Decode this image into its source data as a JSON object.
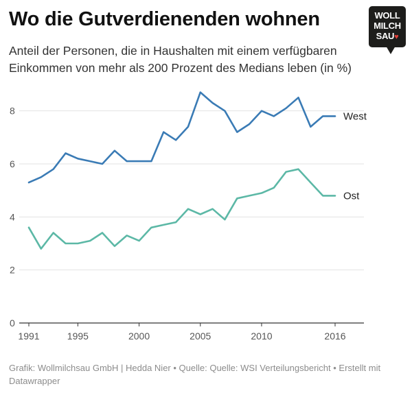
{
  "header": {
    "title": "Wo die Gutverdienenden wohnen",
    "subtitle": "Anteil der Personen, die in Haushalten mit einem verfügbaren Einkommen von mehr als 200 Prozent des Medians leben (in %)"
  },
  "logo": {
    "line1": "WOLL",
    "line2": "MILCH",
    "line3": "SAU",
    "heart": "♥"
  },
  "footer": {
    "text": "Grafik: Wollmilchsau GmbH | Hedda Nier • Quelle: Quelle: WSI Verteilungsbericht • Erstellt mit Datawrapper"
  },
  "colors": {
    "west": "#3a7bb5",
    "ost": "#5cb8a6",
    "grid": "#e3e3e3",
    "axis": "#333333",
    "tick_text": "#555555"
  },
  "chart_data": {
    "type": "line",
    "title": "Wo die Gutverdienenden wohnen",
    "subtitle": "Anteil der Personen, die in Haushalten mit einem verfügbaren Einkommen von mehr als 200 Prozent des Medians leben (in %)",
    "xlabel": "",
    "ylabel": "",
    "x": [
      1991,
      1992,
      1993,
      1994,
      1995,
      1996,
      1997,
      1998,
      1999,
      2000,
      2001,
      2002,
      2003,
      2004,
      2005,
      2006,
      2007,
      2008,
      2009,
      2010,
      2011,
      2012,
      2013,
      2014,
      2015,
      2016
    ],
    "xlim": [
      1991,
      2016
    ],
    "ylim": [
      0,
      9
    ],
    "x_ticks": [
      "1991",
      "1995",
      "2000",
      "2005",
      "2010",
      "2016"
    ],
    "x_tick_values": [
      1991,
      1995,
      2000,
      2005,
      2010,
      2016
    ],
    "y_ticks": [
      "0",
      "2",
      "4",
      "6",
      "8"
    ],
    "y_tick_values": [
      0,
      2,
      4,
      6,
      8
    ],
    "grid": true,
    "legend": "direct labels at line ends",
    "series": [
      {
        "name": "West",
        "color": "#3a7bb5",
        "values": [
          5.3,
          5.5,
          5.8,
          6.4,
          6.2,
          6.1,
          6.0,
          6.5,
          6.1,
          6.1,
          6.1,
          7.2,
          6.9,
          7.4,
          8.7,
          8.3,
          8.0,
          7.2,
          7.5,
          8.0,
          7.8,
          8.1,
          8.5,
          7.4,
          7.8,
          7.8
        ]
      },
      {
        "name": "Ost",
        "color": "#5cb8a6",
        "values": [
          3.6,
          2.8,
          3.4,
          3.0,
          3.0,
          3.1,
          3.4,
          2.9,
          3.3,
          3.1,
          3.6,
          3.7,
          3.8,
          4.3,
          4.1,
          4.3,
          3.9,
          4.7,
          4.8,
          4.9,
          5.1,
          5.7,
          5.8,
          5.3,
          4.8,
          4.8
        ]
      }
    ]
  }
}
